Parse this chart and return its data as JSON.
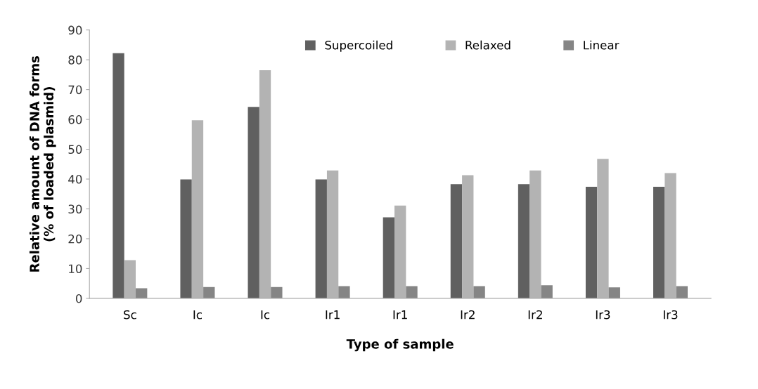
{
  "chart_data": {
    "type": "bar",
    "xlabel": "Type of sample",
    "ylabel": "Relative amount of DNA forms\n(% of loaded plasmid)",
    "categories": [
      "Sc",
      "Ic",
      "Ic",
      "Ir1",
      "Ir1",
      "Ir2",
      "Ir2",
      "Ir3",
      "Ir3"
    ],
    "series": [
      {
        "name": "Supercoiled",
        "color": "#606060",
        "values": [
          82.2,
          39.9,
          64.2,
          39.9,
          27.2,
          38.3,
          38.3,
          37.4,
          37.4
        ]
      },
      {
        "name": "Relaxed",
        "color": "#b3b3b3",
        "values": [
          12.8,
          59.7,
          76.5,
          42.9,
          31.1,
          41.3,
          42.9,
          46.8,
          42.0
        ]
      },
      {
        "name": "Linear",
        "color": "#858585",
        "values": [
          3.4,
          3.8,
          3.8,
          4.1,
          4.1,
          4.1,
          4.4,
          3.7,
          4.1
        ]
      }
    ],
    "ylim": [
      0,
      90
    ],
    "yticks": [
      0,
      10,
      20,
      30,
      40,
      50,
      60,
      70,
      80,
      90
    ],
    "grid": false,
    "legend": "top"
  }
}
